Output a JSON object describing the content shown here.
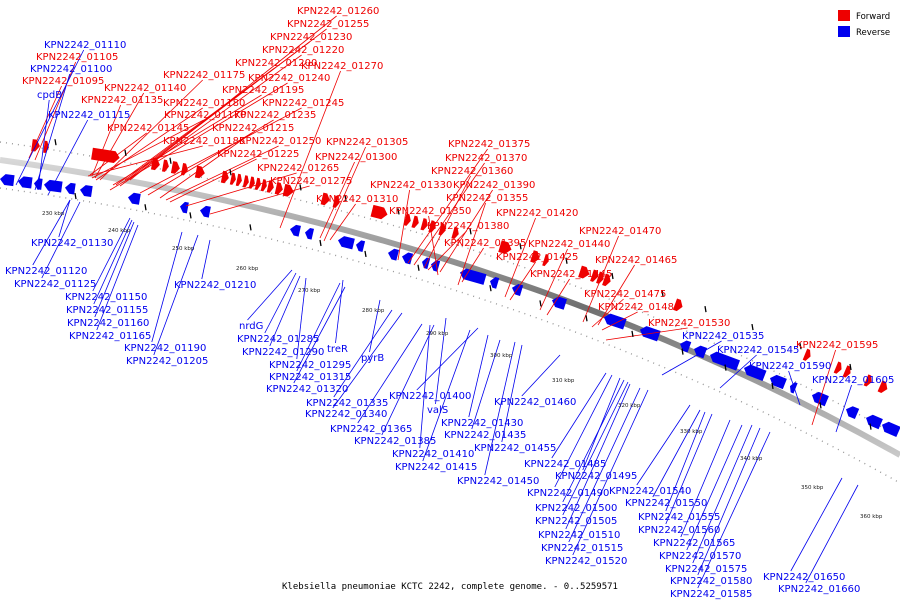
{
  "caption": "Klebsiella pneumoniae KCTC 2242, complete genome. - 0..5259571",
  "legend": [
    {
      "label": "Forward",
      "color": "#ee0000"
    },
    {
      "label": "Reverse",
      "color": "#0000ee"
    }
  ],
  "colors": {
    "forward": "#ee0000",
    "reverse": "#0000ee",
    "backbone": "#888888"
  },
  "ticks": [
    "230 kbp",
    "240 kbp",
    "250 kbp",
    "260 kbp",
    "270 kbp",
    "280 kbp",
    "290 kbp",
    "300 kbp",
    "310 kbp",
    "320 kbp",
    "330 kbp",
    "340 kbp",
    "350 kbp",
    "360 kbp"
  ],
  "forward_labels": [
    "KPN2242_01260",
    "KPN2242_01255",
    "KPN2242_01230",
    "KPN2242_01220",
    "KPN2242_01200",
    "KPN2242_01270",
    "KPN2242_01175",
    "KPN2242_01240",
    "KPN2242_01195",
    "KPN2242_01140",
    "KPN2242_01135",
    "KPN2242_01180",
    "KPN2242_01245",
    "KPN2242_01170",
    "KPN2242_01235",
    "KPN2242_01145",
    "KPN2242_01215",
    "KPN2242_01185",
    "KPN2242_01250",
    "KPN2242_01305",
    "KPN2242_01225",
    "KPN2242_01300",
    "KPN2242_01265",
    "KPN2242_01275",
    "KPN2242_01310",
    "KPN2242_01105",
    "KPN2242_01095",
    "KPN2242_01375",
    "KPN2242_01370",
    "KPN2242_01360",
    "KPN2242_01330",
    "KPN2242_01390",
    "KPN2242_01355",
    "KPN2242_01350",
    "KPN2242_01420",
    "KPN2242_01380",
    "KPN2242_01395",
    "KPN2242_01440",
    "KPN2242_01425",
    "KPN2242_01470",
    "KPN2242_01465",
    "KPN2242_01445",
    "KPN2242_01475",
    "KPN2242_01480",
    "KPN2242_01530",
    "KPN2242_01595"
  ],
  "reverse_labels": [
    "KPN2242_01110",
    "KPN2242_01100",
    "cpdB",
    "KPN2242_01115",
    "KPN2242_01130",
    "KPN2242_01120",
    "KPN2242_01125",
    "KPN2242_01150",
    "KPN2242_01155",
    "KPN2242_01160",
    "KPN2242_01165",
    "KPN2242_01190",
    "KPN2242_01205",
    "KPN2242_01210",
    "nrdG",
    "KPN2242_01285",
    "KPN2242_01290",
    "treR",
    "KPN2242_01295",
    "pyrB",
    "KPN2242_01315",
    "KPN2242_01320",
    "KPN2242_01335",
    "KPN2242_01400",
    "KPN2242_01340",
    "valS",
    "KPN2242_01365",
    "KPN2242_01430",
    "KPN2242_01385",
    "KPN2242_01435",
    "KPN2242_01410",
    "KPN2242_01455",
    "KPN2242_01415",
    "KPN2242_01450",
    "KPN2242_01460",
    "KPN2242_01485",
    "KPN2242_01495",
    "KPN2242_01490",
    "KPN2242_01500",
    "KPN2242_01505",
    "KPN2242_01510",
    "KPN2242_01515",
    "KPN2242_01520",
    "KPN2242_01535",
    "KPN2242_01545",
    "KPN2242_01590",
    "KPN2242_01605",
    "KPN2242_01540",
    "KPN2242_01550",
    "KPN2242_01555",
    "KPN2242_01560",
    "KPN2242_01565",
    "KPN2242_01570",
    "KPN2242_01575",
    "KPN2242_01580",
    "KPN2242_01585",
    "KPN2242_01650",
    "KPN2242_01660"
  ]
}
